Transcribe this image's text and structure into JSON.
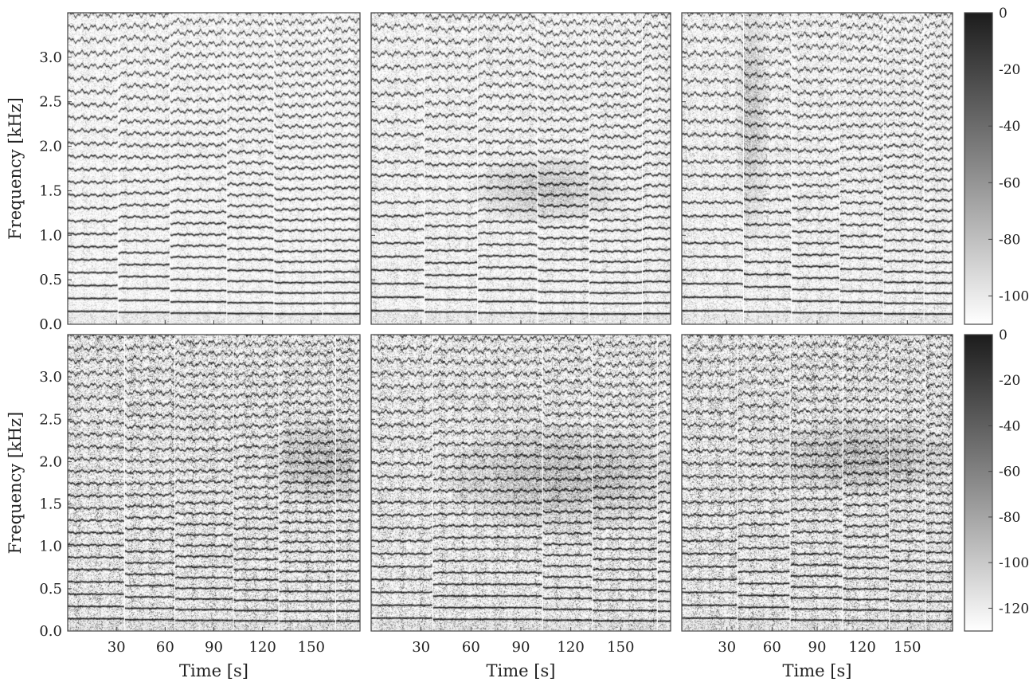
{
  "chart_data": {
    "type": "heatmap",
    "subtype": "spectrogram-grid",
    "grid": {
      "rows": 2,
      "cols": 3
    },
    "xlabel": "Time [s]",
    "ylabel": "Frequency [kHz]",
    "xlim": [
      0,
      180
    ],
    "ylim": [
      0,
      3.5
    ],
    "x_ticks": [
      30,
      60,
      90,
      120,
      150
    ],
    "y_ticks": [
      0.0,
      0.5,
      1.0,
      1.5,
      2.0,
      2.5,
      3.0
    ],
    "y_tick_labels": [
      "0.0",
      "0.5",
      "1.0",
      "1.5",
      "2.0",
      "2.5",
      "3.0"
    ],
    "colormap": "grayscale (white = low, black = high)",
    "colorbars": [
      {
        "row": 0,
        "range": [
          -110,
          0
        ],
        "ticks": [
          0,
          -20,
          -40,
          -60,
          -80,
          -100
        ],
        "tick_labels": [
          "0",
          "-20",
          "-40",
          "-60",
          "-80",
          "-100"
        ]
      },
      {
        "row": 1,
        "range": [
          -130,
          0
        ],
        "ticks": [
          0,
          -20,
          -40,
          -60,
          -80,
          -100,
          -120
        ],
        "tick_labels": [
          "0",
          "-20",
          "-40",
          "-60",
          "-80",
          "-100",
          "-120"
        ]
      }
    ],
    "panels": [
      {
        "row": 0,
        "col": 0,
        "segment_boundaries_s": [
          31,
          63,
          98,
          127,
          157
        ],
        "fundamentals_khz": [
          0.145,
          0.134,
          0.126,
          0.121,
          0.117,
          0.118
        ],
        "noise": 0.18,
        "broadband_blob": null
      },
      {
        "row": 0,
        "col": 1,
        "segment_boundaries_s": [
          32,
          64,
          100,
          131,
          163
        ],
        "fundamentals_khz": [
          0.152,
          0.138,
          0.128,
          0.121,
          0.117,
          0.12
        ],
        "noise": 0.22,
        "broadband_blob": {
          "t": [
            70,
            140
          ],
          "f": [
            1.2,
            1.8
          ]
        }
      },
      {
        "row": 0,
        "col": 2,
        "segment_boundaries_s": [
          41,
          73,
          105,
          134,
          161
        ],
        "fundamentals_khz": [
          0.152,
          0.14,
          0.13,
          0.124,
          0.118,
          0.116
        ],
        "noise": 0.24,
        "broadband_blob": {
          "t": [
            38,
            55
          ],
          "f": [
            1.2,
            3.4
          ]
        }
      },
      {
        "row": 1,
        "col": 0,
        "segment_boundaries_s": [
          35,
          66,
          102,
          130,
          165
        ],
        "fundamentals_khz": [
          0.145,
          0.134,
          0.126,
          0.121,
          0.117,
          0.118
        ],
        "noise": 0.42,
        "broadband_blob": {
          "t": [
            130,
            180
          ],
          "f": [
            1.6,
            2.4
          ]
        }
      },
      {
        "row": 1,
        "col": 1,
        "segment_boundaries_s": [
          37,
          103,
          133,
          172
        ],
        "fundamentals_khz": [
          0.152,
          0.138,
          0.128,
          0.121,
          0.117
        ],
        "noise": 0.4,
        "broadband_blob": {
          "t": [
            60,
            170
          ],
          "f": [
            1.3,
            2.3
          ]
        }
      },
      {
        "row": 1,
        "col": 2,
        "segment_boundaries_s": [
          37,
          72,
          107,
          138,
          162
        ],
        "fundamentals_khz": [
          0.152,
          0.14,
          0.13,
          0.124,
          0.118,
          0.116
        ],
        "noise": 0.44,
        "broadband_blob": {
          "t": [
            70,
            170
          ],
          "f": [
            1.7,
            2.4
          ]
        }
      }
    ]
  }
}
